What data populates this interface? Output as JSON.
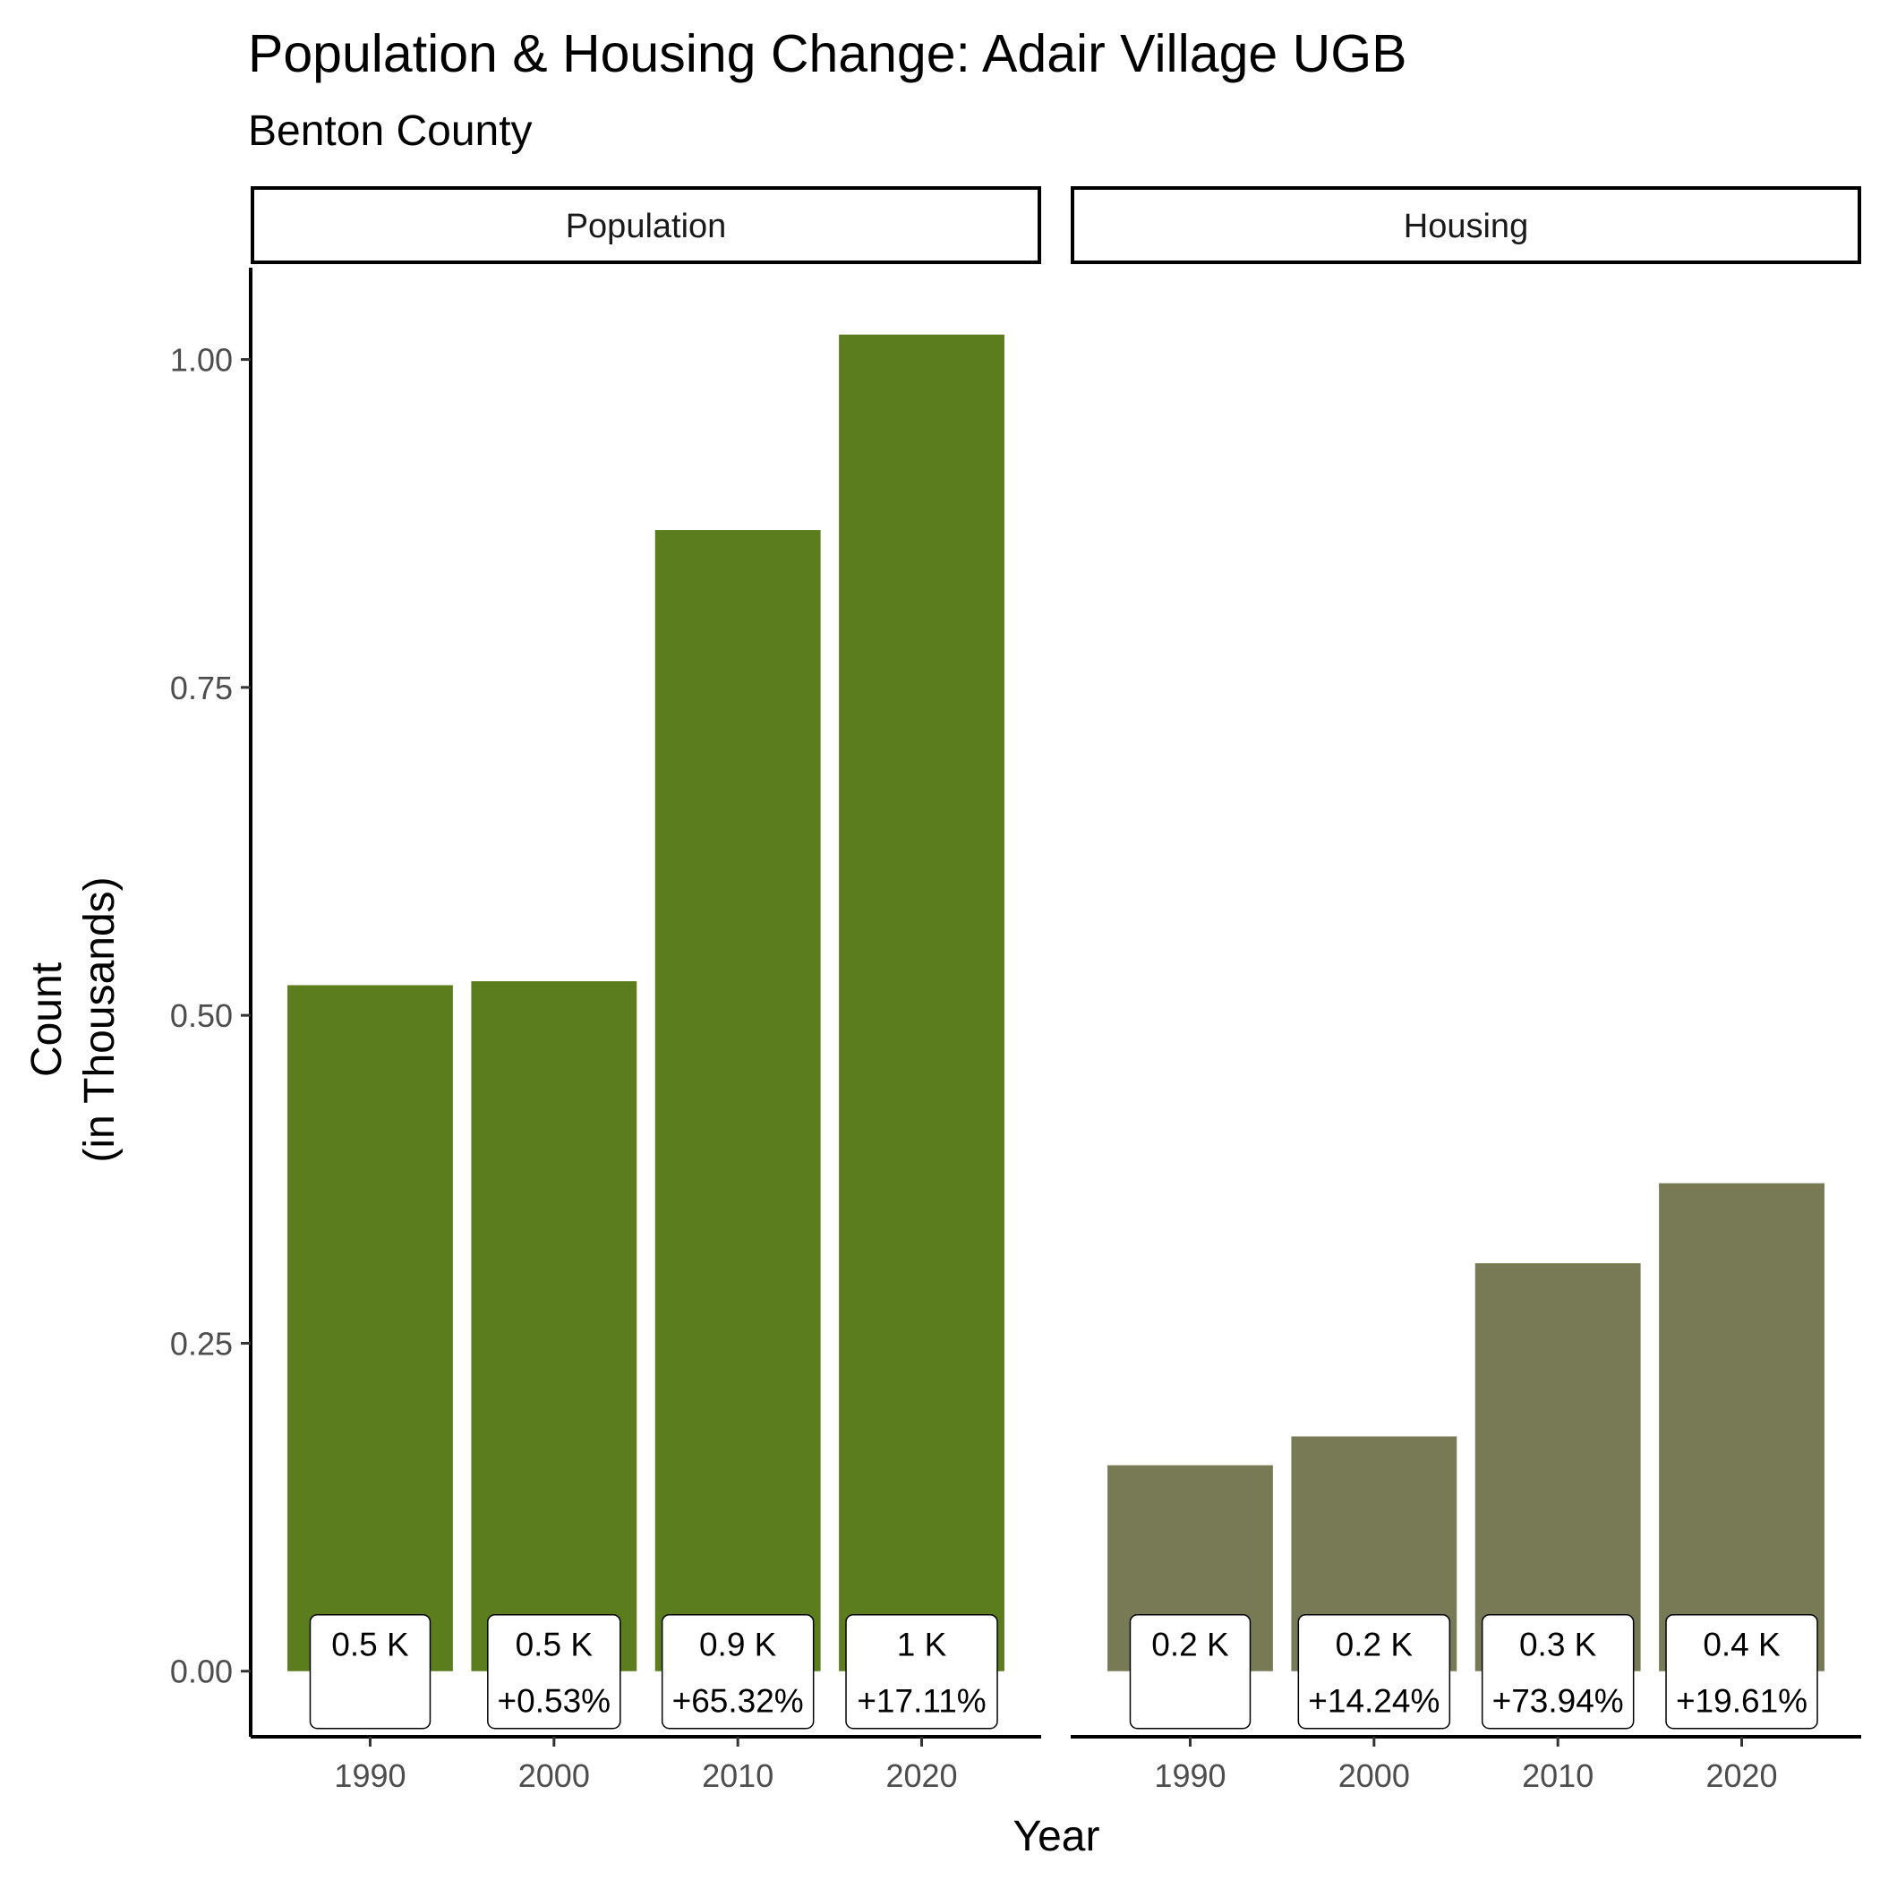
{
  "chart_data": {
    "type": "bar",
    "title": "Population & Housing Change: Adair Village UGB",
    "subtitle": "Benton County",
    "xlabel": "Year",
    "ylabel": [
      "Count",
      "(in Thousands)"
    ],
    "ylim": [
      -0.05,
      1.07
    ],
    "yticks": [
      "0.00",
      "0.25",
      "0.50",
      "0.75",
      "1.00"
    ],
    "grid": false,
    "legend": "none",
    "categories": [
      "1990",
      "2000",
      "2010",
      "2020"
    ],
    "panels": [
      {
        "name": "Population",
        "color": "#5c7d1e",
        "values": [
          0.523,
          0.526,
          0.87,
          1.019
        ],
        "labels": [
          "0.5 K",
          "0.5 K",
          "0.9 K",
          "1 K"
        ],
        "changes": [
          "",
          "+0.53%",
          "+65.32%",
          "+17.11%"
        ]
      },
      {
        "name": "Housing",
        "color": "#787a55",
        "values": [
          0.157,
          0.179,
          0.311,
          0.372
        ],
        "labels": [
          "0.2 K",
          "0.2 K",
          "0.3 K",
          "0.4 K"
        ],
        "changes": [
          "",
          "+14.24%",
          "+73.94%",
          "+19.61%"
        ]
      }
    ]
  }
}
